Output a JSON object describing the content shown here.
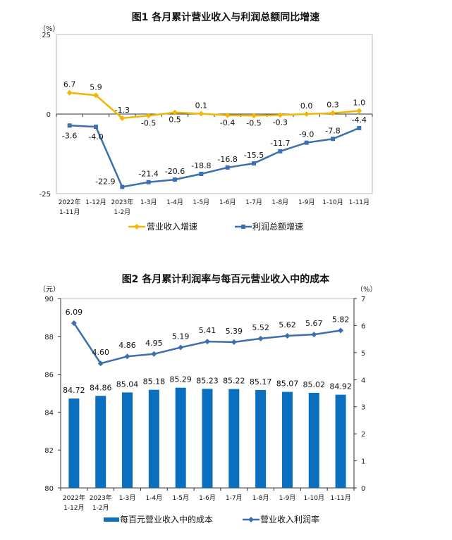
{
  "chart_data": [
    {
      "type": "line",
      "title": "图1  各月累计营业收入与利润总额同比增速",
      "ylabel": "（%）",
      "ylim": [
        -25,
        25
      ],
      "yticks": [
        "25",
        "0",
        "-25"
      ],
      "categories": [
        [
          "2022年",
          "1-11月"
        ],
        [
          "1-12月"
        ],
        [
          "2023年",
          "1-2月"
        ],
        [
          "1-3月"
        ],
        [
          "1-4月"
        ],
        [
          "1-5月"
        ],
        [
          "1-6月"
        ],
        [
          "1-7月"
        ],
        [
          "1-8月"
        ],
        [
          "1-9月"
        ],
        [
          "1-10月"
        ],
        [
          "1-11月"
        ]
      ],
      "series": [
        {
          "name": "营业收入增速",
          "color": "#F2B705",
          "marker": "diamond",
          "values": [
            6.7,
            5.9,
            -1.3,
            -0.5,
            0.5,
            0.1,
            -0.4,
            -0.5,
            -0.3,
            0.0,
            0.3,
            1.0
          ],
          "labels": [
            "6.7",
            "5.9",
            "-1.3",
            "-0.5",
            "0.5",
            "0.1",
            "-0.4",
            "-0.5",
            "-0.3",
            "0.0",
            "0.3",
            "1.0"
          ]
        },
        {
          "name": "利润总额增速",
          "color": "#3C6FB0",
          "marker": "square",
          "values": [
            -3.6,
            -4.0,
            -22.9,
            -21.4,
            -20.6,
            -18.8,
            -16.8,
            -15.5,
            -11.7,
            -9.0,
            -7.8,
            -4.4
          ],
          "labels": [
            "-3.6",
            "-4.0",
            "-22.9",
            "-21.4",
            "-20.6",
            "-18.8",
            "-16.8",
            "-15.5",
            "-11.7",
            "-9.0",
            "-7.8",
            "-4.4"
          ]
        }
      ],
      "legend": "bottom",
      "grid": false
    },
    {
      "type": "bar+line",
      "title": "图2  各月累计利润率与每百元营业收入中的成本",
      "ylabel_left": "（元）",
      "ylabel_right": "（%）",
      "ylim_left": [
        80,
        90
      ],
      "ylim_right": [
        0,
        7
      ],
      "yticks_left": [
        "80",
        "82",
        "84",
        "86",
        "88",
        "90"
      ],
      "yticks_right": [
        "0",
        "1",
        "2",
        "3",
        "4",
        "5",
        "6",
        "7"
      ],
      "categories": [
        [
          "2022年",
          "1-12月"
        ],
        [
          "2023年",
          "1-2月"
        ],
        [
          "1-3月"
        ],
        [
          "1-4月"
        ],
        [
          "1-5月"
        ],
        [
          "1-6月"
        ],
        [
          "1-7月"
        ],
        [
          "1-8月"
        ],
        [
          "1-9月"
        ],
        [
          "1-10月"
        ],
        [
          "1-11月"
        ]
      ],
      "series": [
        {
          "name": "每百元营业收入中的成本",
          "type": "bar",
          "axis": "left",
          "color": "#0B6FBF",
          "values": [
            84.72,
            84.86,
            85.04,
            85.18,
            85.29,
            85.23,
            85.22,
            85.17,
            85.07,
            85.02,
            84.92
          ],
          "labels": [
            "84.72",
            "84.86",
            "85.04",
            "85.18",
            "85.29",
            "85.23",
            "85.22",
            "85.17",
            "85.07",
            "85.02",
            "84.92"
          ]
        },
        {
          "name": "营业收入利润率",
          "type": "line",
          "axis": "right",
          "color": "#3C6FB0",
          "marker": "diamond",
          "values": [
            6.09,
            4.6,
            4.86,
            4.95,
            5.19,
            5.41,
            5.39,
            5.52,
            5.62,
            5.67,
            5.82
          ],
          "labels": [
            "6.09",
            "4.60",
            "4.86",
            "4.95",
            "5.19",
            "5.41",
            "5.39",
            "5.52",
            "5.62",
            "5.67",
            "5.82"
          ]
        }
      ],
      "legend": "bottom",
      "grid": false
    }
  ]
}
